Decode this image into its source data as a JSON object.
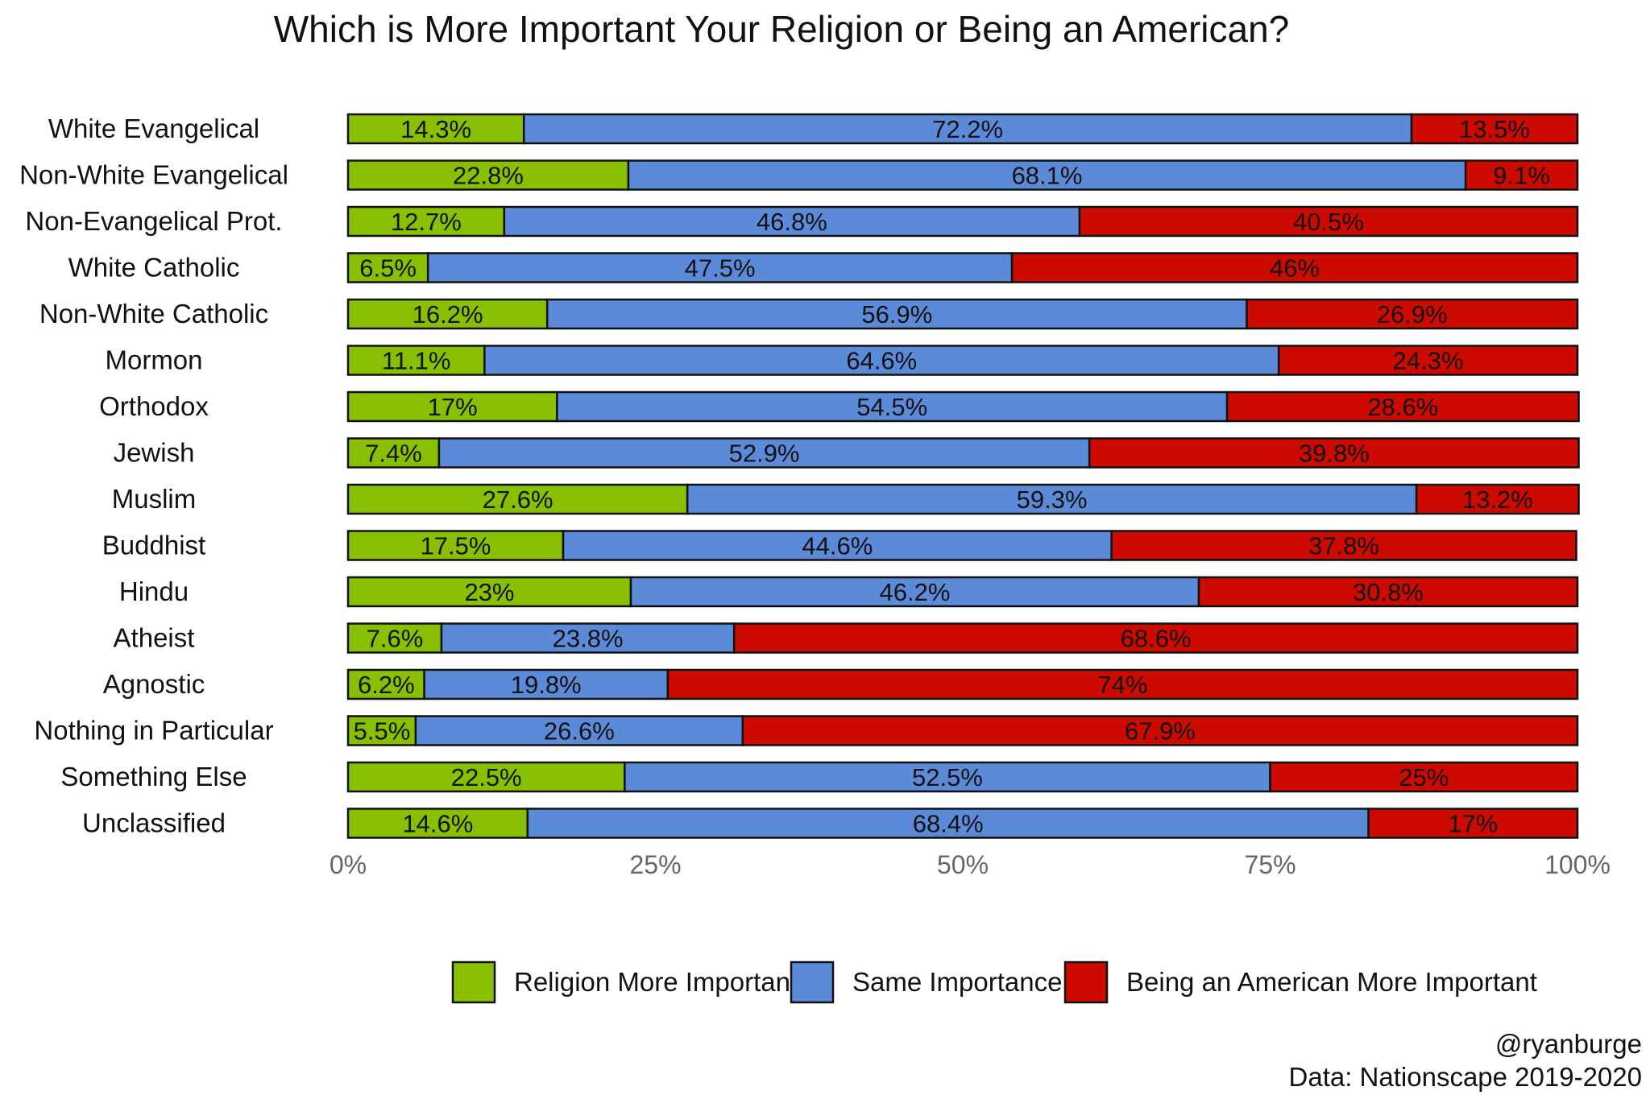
{
  "chart_data": {
    "type": "bar",
    "orientation": "horizontal",
    "stacked": true,
    "title": "Which is More Important Your Religion or Being an American?",
    "categories": [
      "White Evangelical",
      "Non-White Evangelical",
      "Non-Evangelical Prot.",
      "White Catholic",
      "Non-White Catholic",
      "Mormon",
      "Orthodox",
      "Jewish",
      "Muslim",
      "Buddhist",
      "Hindu",
      "Atheist",
      "Agnostic",
      "Nothing in Particular",
      "Something Else",
      "Unclassified"
    ],
    "series": [
      {
        "name": "Religion More Important",
        "color": "#88bf00",
        "values": [
          14.3,
          22.8,
          12.7,
          6.5,
          16.2,
          11.1,
          17,
          7.4,
          27.6,
          17.5,
          23,
          7.6,
          6.2,
          5.5,
          22.5,
          14.6
        ],
        "labels": [
          "14.3%",
          "22.8%",
          "12.7%",
          "6.5%",
          "16.2%",
          "11.1%",
          "17%",
          "7.4%",
          "27.6%",
          "17.5%",
          "23%",
          "7.6%",
          "6.2%",
          "5.5%",
          "22.5%",
          "14.6%"
        ]
      },
      {
        "name": "Same Importance",
        "color": "#5b8ad9",
        "values": [
          72.2,
          68.1,
          46.8,
          47.5,
          56.9,
          64.6,
          54.5,
          52.9,
          59.3,
          44.6,
          46.2,
          23.8,
          19.8,
          26.6,
          52.5,
          68.4
        ],
        "labels": [
          "72.2%",
          "68.1%",
          "46.8%",
          "47.5%",
          "56.9%",
          "64.6%",
          "54.5%",
          "52.9%",
          "59.3%",
          "44.6%",
          "46.2%",
          "23.8%",
          "19.8%",
          "26.6%",
          "52.5%",
          "68.4%"
        ]
      },
      {
        "name": "Being an American More Important",
        "color": "#cc0a00",
        "values": [
          13.5,
          9.1,
          40.5,
          46,
          26.9,
          24.3,
          28.6,
          39.8,
          13.2,
          37.8,
          30.8,
          68.6,
          74,
          67.9,
          25,
          17
        ],
        "labels": [
          "13.5%",
          "9.1%",
          "40.5%",
          "46%",
          "26.9%",
          "24.3%",
          "28.6%",
          "39.8%",
          "13.2%",
          "37.8%",
          "30.8%",
          "68.6%",
          "74%",
          "67.9%",
          "25%",
          "17%"
        ]
      }
    ],
    "xlim": [
      0,
      100
    ],
    "x_ticks": [
      0,
      25,
      50,
      75,
      100
    ],
    "x_tick_labels": [
      "0%",
      "25%",
      "50%",
      "75%",
      "100%"
    ],
    "xlabel": "",
    "ylabel": "",
    "grid": false,
    "legend_position": "bottom",
    "annotations": [
      "@ryanburge",
      "Data: Nationscape 2019-2020"
    ]
  }
}
